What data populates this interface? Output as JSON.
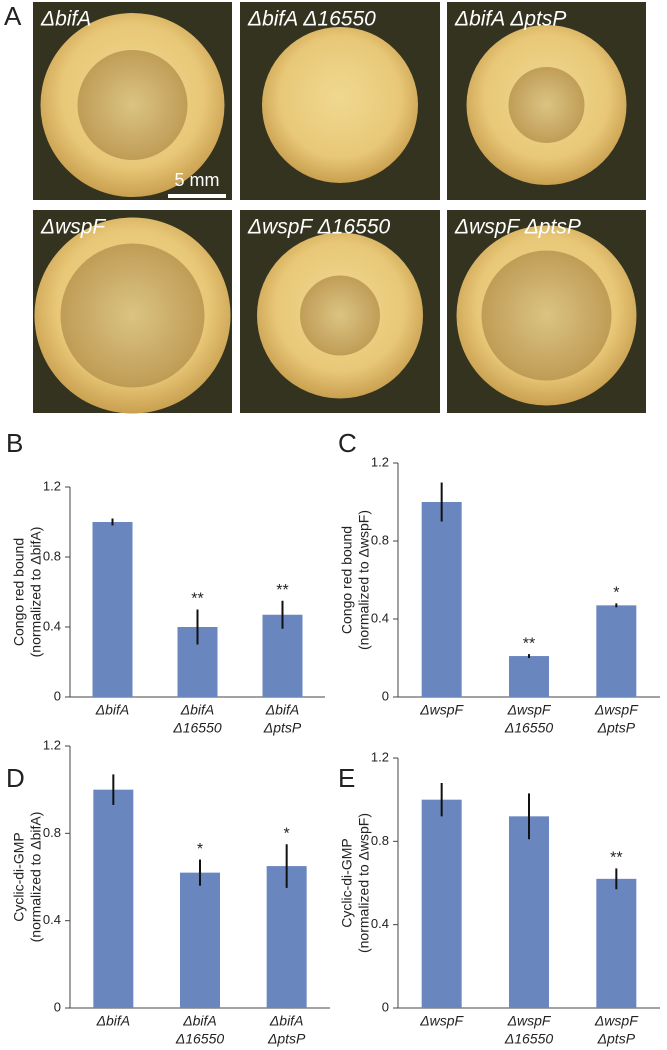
{
  "panel_a": {
    "label": "A",
    "images": [
      {
        "label": "ΔbifA"
      },
      {
        "label": "ΔbifA Δ16550"
      },
      {
        "label": "ΔbifA ΔptsP"
      },
      {
        "label": "ΔwspF"
      },
      {
        "label": "ΔwspF Δ16550"
      },
      {
        "label": "ΔwspF ΔptsP"
      }
    ],
    "scale_bar": "5 mm"
  },
  "chart_data": [
    {
      "type": "bar",
      "panel": "B",
      "ylabel": [
        "Congo red bound",
        "(normalized to ΔbifA)"
      ],
      "categories": [
        [
          "ΔbifA"
        ],
        [
          "ΔbifA",
          "Δ16550"
        ],
        [
          "ΔbifA",
          "ΔptsP"
        ]
      ],
      "values": [
        1.0,
        0.4,
        0.47
      ],
      "errors": [
        0.02,
        0.1,
        0.08
      ],
      "significance": [
        null,
        "**",
        "**"
      ],
      "color": "#6a86bf",
      "ylim": [
        0,
        1.2
      ],
      "yticks": [
        0,
        0.4,
        0.8,
        1.2
      ]
    },
    {
      "type": "bar",
      "panel": "C",
      "ylabel": [
        "Congo red bound",
        "(normalized to ΔwspF)"
      ],
      "categories": [
        [
          "ΔwspF"
        ],
        [
          "ΔwspF",
          "Δ16550"
        ],
        [
          "ΔwspF",
          "ΔptsP"
        ]
      ],
      "values": [
        1.0,
        0.21,
        0.47
      ],
      "errors": [
        0.1,
        0.01,
        0.01
      ],
      "significance": [
        null,
        "**",
        "*"
      ],
      "color": "#6a86bf",
      "ylim": [
        0,
        1.2
      ],
      "yticks": [
        0,
        0.4,
        0.8,
        1.2
      ]
    },
    {
      "type": "bar",
      "panel": "D",
      "ylabel": [
        "Cyclic-di-GMP",
        "(normalized to ΔbifA)"
      ],
      "categories": [
        [
          "ΔbifA"
        ],
        [
          "ΔbifA",
          "Δ16550"
        ],
        [
          "ΔbifA",
          "ΔptsP"
        ]
      ],
      "values": [
        1.0,
        0.62,
        0.65
      ],
      "errors": [
        0.07,
        0.06,
        0.1
      ],
      "significance": [
        null,
        "*",
        "*"
      ],
      "color": "#6a86bf",
      "ylim": [
        0,
        1.2
      ],
      "yticks": [
        0,
        0.4,
        0.8,
        1.2
      ]
    },
    {
      "type": "bar",
      "panel": "E",
      "ylabel": [
        "Cyclic-di-GMP",
        "(normalized to ΔwspF)"
      ],
      "categories": [
        [
          "ΔwspF"
        ],
        [
          "ΔwspF",
          "Δ16550"
        ],
        [
          "ΔwspF",
          "ΔptsP"
        ]
      ],
      "values": [
        1.0,
        0.92,
        0.62
      ],
      "errors": [
        0.08,
        0.11,
        0.05
      ],
      "significance": [
        null,
        null,
        "**"
      ],
      "color": "#6a86bf",
      "ylim": [
        0,
        1.2
      ],
      "yticks": [
        0,
        0.4,
        0.8,
        1.2
      ]
    }
  ]
}
